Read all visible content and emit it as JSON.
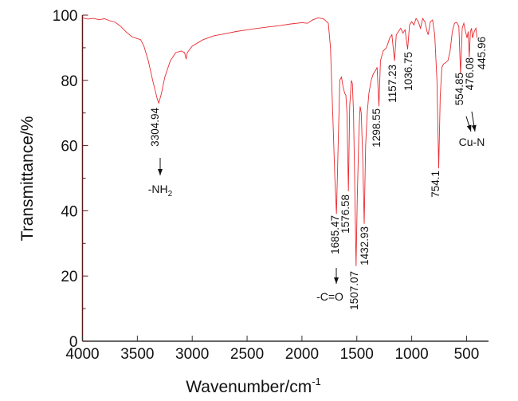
{
  "chart_data": {
    "type": "line",
    "title": "",
    "xlabel": "Wavenumber/cm",
    "xlabel_superscript": "-1",
    "ylabel": "Transmittance/%",
    "xlim": [
      4000,
      300
    ],
    "ylim": [
      0,
      100
    ],
    "x_ticks": [
      4000,
      3500,
      3000,
      2500,
      2000,
      1500,
      1000,
      500
    ],
    "y_ticks": [
      0,
      20,
      40,
      60,
      80,
      100
    ],
    "grid": false,
    "line_color": "#e8292f",
    "axis_color": "#5a1a1a",
    "series": [
      {
        "points": [
          [
            4000,
            99.2
          ],
          [
            3950,
            98.8
          ],
          [
            3900,
            99
          ],
          [
            3850,
            98.6
          ],
          [
            3800,
            98.9
          ],
          [
            3750,
            98.3
          ],
          [
            3700,
            97.8
          ],
          [
            3650,
            96.5
          ],
          [
            3600,
            94.8
          ],
          [
            3550,
            93.4
          ],
          [
            3500,
            92.8
          ],
          [
            3470,
            92.5
          ],
          [
            3440,
            90.5
          ],
          [
            3400,
            86
          ],
          [
            3360,
            80
          ],
          [
            3320,
            74.5
          ],
          [
            3304.94,
            73
          ],
          [
            3280,
            76
          ],
          [
            3250,
            81
          ],
          [
            3200,
            86
          ],
          [
            3150,
            88.5
          ],
          [
            3100,
            89
          ],
          [
            3070,
            88.5
          ],
          [
            3055,
            86.5
          ],
          [
            3045,
            88.5
          ],
          [
            3000,
            90.5
          ],
          [
            2900,
            92.5
          ],
          [
            2800,
            93.7
          ],
          [
            2700,
            94.3
          ],
          [
            2600,
            95
          ],
          [
            2500,
            95.5
          ],
          [
            2400,
            96
          ],
          [
            2300,
            96.4
          ],
          [
            2200,
            96.8
          ],
          [
            2100,
            97.3
          ],
          [
            2000,
            97.7
          ],
          [
            1950,
            97.5
          ],
          [
            1900,
            98.6
          ],
          [
            1850,
            99.2
          ],
          [
            1800,
            98.8
          ],
          [
            1760,
            97.5
          ],
          [
            1740,
            90
          ],
          [
            1720,
            70
          ],
          [
            1700,
            50
          ],
          [
            1685.47,
            39
          ],
          [
            1670,
            60
          ],
          [
            1655,
            80
          ],
          [
            1640,
            81
          ],
          [
            1625,
            78
          ],
          [
            1610,
            76
          ],
          [
            1600,
            75.5
          ],
          [
            1590,
            70
          ],
          [
            1576.58,
            46
          ],
          [
            1565,
            72
          ],
          [
            1550,
            80
          ],
          [
            1540,
            79
          ],
          [
            1530,
            70
          ],
          [
            1520,
            50
          ],
          [
            1507.07,
            23
          ],
          [
            1495,
            45
          ],
          [
            1480,
            65
          ],
          [
            1470,
            72
          ],
          [
            1460,
            70
          ],
          [
            1445,
            55
          ],
          [
            1432.93,
            36
          ],
          [
            1420,
            60
          ],
          [
            1405,
            70
          ],
          [
            1390,
            76
          ],
          [
            1370,
            80
          ],
          [
            1350,
            82
          ],
          [
            1330,
            83
          ],
          [
            1315,
            84
          ],
          [
            1298.55,
            72
          ],
          [
            1285,
            86
          ],
          [
            1260,
            89
          ],
          [
            1230,
            90
          ],
          [
            1200,
            93
          ],
          [
            1180,
            94
          ],
          [
            1157.23,
            86
          ],
          [
            1140,
            94
          ],
          [
            1120,
            95
          ],
          [
            1100,
            96
          ],
          [
            1080,
            94.5
          ],
          [
            1060,
            95.5
          ],
          [
            1036.75,
            89.5
          ],
          [
            1020,
            97
          ],
          [
            1000,
            98
          ],
          [
            980,
            97
          ],
          [
            960,
            99
          ],
          [
            940,
            98
          ],
          [
            920,
            96
          ],
          [
            900,
            99
          ],
          [
            880,
            98
          ],
          [
            860,
            95
          ],
          [
            850,
            94
          ],
          [
            830,
            98
          ],
          [
            810,
            98.5
          ],
          [
            790,
            94
          ],
          [
            770,
            80
          ],
          [
            754.1,
            53
          ],
          [
            740,
            75
          ],
          [
            725,
            84
          ],
          [
            710,
            85
          ],
          [
            690,
            85.5
          ],
          [
            670,
            86
          ],
          [
            650,
            89
          ],
          [
            630,
            95
          ],
          [
            610,
            97.5
          ],
          [
            590,
            97.8
          ],
          [
            570,
            96.5
          ],
          [
            554.85,
            82
          ],
          [
            540,
            96
          ],
          [
            525,
            97.5
          ],
          [
            510,
            95
          ],
          [
            495,
            93
          ],
          [
            485,
            95
          ],
          [
            476.08,
            87
          ],
          [
            465,
            95
          ],
          [
            455,
            96
          ],
          [
            445.96,
            93
          ],
          [
            430,
            95
          ],
          [
            415,
            96
          ],
          [
            405,
            93
          ]
        ]
      }
    ],
    "annotations": [
      {
        "wavenumber": 3304.94,
        "label": "3304.94",
        "group": "-NH2"
      },
      {
        "wavenumber": 1685.47,
        "label": "1685.47",
        "group": "-C=O"
      },
      {
        "wavenumber": 1576.58,
        "label": "1576.58"
      },
      {
        "wavenumber": 1507.07,
        "label": "1507.07"
      },
      {
        "wavenumber": 1432.93,
        "label": "1432.93"
      },
      {
        "wavenumber": 1298.55,
        "label": "1298.55"
      },
      {
        "wavenumber": 1157.23,
        "label": "1157.23"
      },
      {
        "wavenumber": 1036.75,
        "label": "1036.75"
      },
      {
        "wavenumber": 754.1,
        "label": "754.1"
      },
      {
        "wavenumber": 554.85,
        "label": "554.85",
        "group": "Cu-N"
      },
      {
        "wavenumber": 476.08,
        "label": "476.08",
        "group": "Cu-N"
      },
      {
        "wavenumber": 445.96,
        "label": "445.96"
      }
    ],
    "group_labels": {
      "nh2": {
        "main": "-NH",
        "sub": "2"
      },
      "co": "-C=O",
      "cun": "Cu-N"
    }
  }
}
